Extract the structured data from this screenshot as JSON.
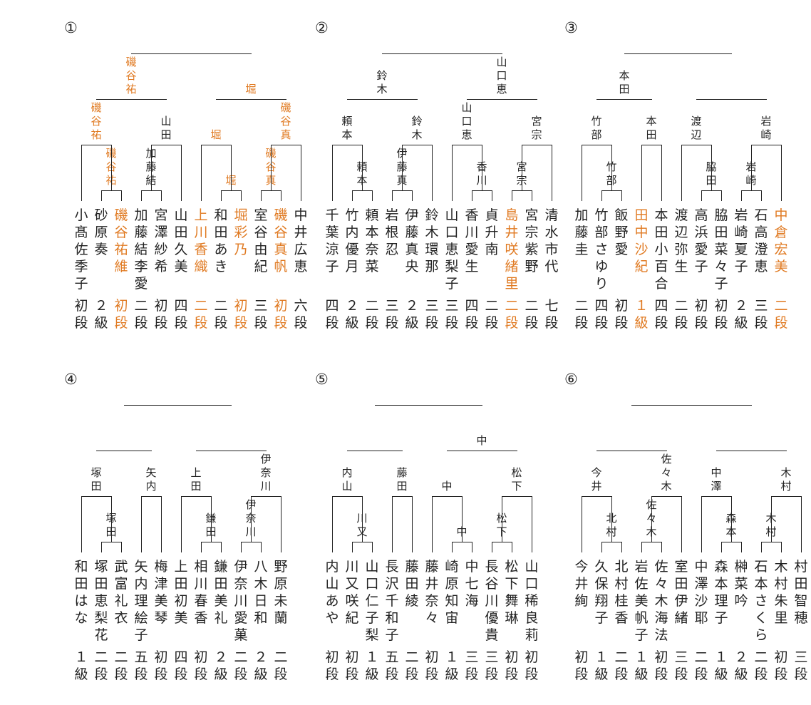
{
  "colors": {
    "winner": "#e07a22",
    "text": "#222222",
    "line": "#222222"
  },
  "brackets": [
    {
      "label": "①",
      "players": [
        {
          "name": "小髙佐季子",
          "grade": "初段",
          "w": false
        },
        {
          "name": "砂原奏",
          "grade": "２級",
          "w": false
        },
        {
          "name": "磯谷祐維",
          "grade": "初段",
          "w": true
        },
        {
          "name": "加藤結李愛",
          "grade": "二段",
          "w": false
        },
        {
          "name": "宮澤紗希",
          "grade": "初段",
          "w": false
        },
        {
          "name": "山田久美",
          "grade": "四段",
          "w": false
        },
        {
          "name": "上川香織",
          "grade": "二段",
          "w": true
        },
        {
          "name": "和田あき",
          "grade": "二段",
          "w": false
        },
        {
          "name": "堀彩乃",
          "grade": "初段",
          "w": true
        },
        {
          "name": "室谷由紀",
          "grade": "三段",
          "w": false
        },
        {
          "name": "磯谷真帆",
          "grade": "初段",
          "w": true
        },
        {
          "name": "中井広恵",
          "grade": "六段",
          "w": false
        }
      ],
      "r1": [
        {
          "name": "",
          "w": false
        },
        {
          "name": "磯谷祐",
          "w": true
        },
        {
          "name": "加藤結",
          "w": false
        },
        {
          "name": "",
          "w": false
        },
        {
          "name": "堀",
          "w": true
        },
        {
          "name": "磯谷真",
          "w": true
        }
      ],
      "qf": [
        {
          "name": "磯谷祐",
          "w": true
        },
        {
          "name": "山田",
          "w": false
        },
        {
          "name": "堀",
          "w": true
        },
        {
          "name": "磯谷真",
          "w": true
        }
      ],
      "sf": [
        {
          "name": "磯谷祐",
          "w": true
        },
        {
          "name": "堀",
          "w": true
        }
      ],
      "fin": ""
    },
    {
      "label": "②",
      "players": [
        {
          "name": "千葉涼子",
          "grade": "四段",
          "w": false
        },
        {
          "name": "竹内優月",
          "grade": "２級",
          "w": false
        },
        {
          "name": "頼本奈菜",
          "grade": "二段",
          "w": false
        },
        {
          "name": "岩根忍",
          "grade": "三段",
          "w": false
        },
        {
          "name": "伊藤真央",
          "grade": "２級",
          "w": false
        },
        {
          "name": "鈴木環那",
          "grade": "三段",
          "w": false
        },
        {
          "name": "山口恵梨子",
          "grade": "三段",
          "w": false
        },
        {
          "name": "香川愛生",
          "grade": "四段",
          "w": false
        },
        {
          "name": "貞升南",
          "grade": "二段",
          "w": false
        },
        {
          "name": "島井咲緒里",
          "grade": "二段",
          "w": true
        },
        {
          "name": "宮宗紫野",
          "grade": "二段",
          "w": false
        },
        {
          "name": "清水市代",
          "grade": "七段",
          "w": false
        }
      ],
      "r1": [
        {
          "name": "",
          "w": false
        },
        {
          "name": "頼本",
          "w": false
        },
        {
          "name": "伊藤真",
          "w": false
        },
        {
          "name": "",
          "w": false
        },
        {
          "name": "香川",
          "w": false
        },
        {
          "name": "宮宗",
          "w": false
        }
      ],
      "qf": [
        {
          "name": "頼本",
          "w": false
        },
        {
          "name": "鈴木",
          "w": false
        },
        {
          "name": "山口恵",
          "w": false
        },
        {
          "name": "宮宗",
          "w": false
        }
      ],
      "sf": [
        {
          "name": "鈴木",
          "w": false
        },
        {
          "name": "山口恵",
          "w": false
        }
      ],
      "fin": ""
    },
    {
      "label": "③",
      "players": [
        {
          "name": "加藤圭",
          "grade": "二段",
          "w": false
        },
        {
          "name": "竹部さゆり",
          "grade": "四段",
          "w": false
        },
        {
          "name": "飯野愛",
          "grade": "初段",
          "w": false
        },
        {
          "name": "田中沙紀",
          "grade": "１級",
          "w": true
        },
        {
          "name": "本田小百合",
          "grade": "四段",
          "w": false
        },
        {
          "name": "渡辺弥生",
          "grade": "二段",
          "w": false
        },
        {
          "name": "高浜愛子",
          "grade": "初段",
          "w": false
        },
        {
          "name": "脇田菜々子",
          "grade": "初段",
          "w": false
        },
        {
          "name": "岩崎夏子",
          "grade": "２級",
          "w": false
        },
        {
          "name": "石高澄恵",
          "grade": "三段",
          "w": false
        },
        {
          "name": "中倉宏美",
          "grade": "二段",
          "w": true
        }
      ],
      "r1": [
        {
          "name": "",
          "w": false
        },
        {
          "name": "竹部",
          "w": false
        },
        {
          "name": "",
          "w": false
        },
        {
          "name": "",
          "w": false
        },
        {
          "name": "脇田",
          "w": false
        },
        {
          "name": "岩崎",
          "w": false
        }
      ],
      "qf": [
        {
          "name": "竹部",
          "w": false
        },
        {
          "name": "本田",
          "w": false
        },
        {
          "name": "渡辺",
          "w": false
        },
        {
          "name": "岩崎",
          "w": false
        }
      ],
      "sf": [
        {
          "name": "本田",
          "w": false
        },
        {
          "name": "",
          "w": false
        }
      ],
      "fin": ""
    },
    {
      "label": "④",
      "players": [
        {
          "name": "和田はな",
          "grade": "１級",
          "w": false
        },
        {
          "name": "塚田恵梨花",
          "grade": "二段",
          "w": false
        },
        {
          "name": "武富礼衣",
          "grade": "二段",
          "w": false
        },
        {
          "name": "矢内理絵子",
          "grade": "五段",
          "w": false
        },
        {
          "name": "梅津美琴",
          "grade": "初段",
          "w": false
        },
        {
          "name": "上田初美",
          "grade": "四段",
          "w": false
        },
        {
          "name": "相川春香",
          "grade": "初段",
          "w": false
        },
        {
          "name": "鎌田美礼",
          "grade": "２級",
          "w": false
        },
        {
          "name": "伊奈川愛菓",
          "grade": "二段",
          "w": false
        },
        {
          "name": "八木日和",
          "grade": "２級",
          "w": false
        },
        {
          "name": "野原未蘭",
          "grade": "二段",
          "w": false
        }
      ],
      "r1": [
        {
          "name": "",
          "w": false
        },
        {
          "name": "塚田",
          "w": false
        },
        {
          "name": "",
          "w": false
        },
        {
          "name": "",
          "w": false
        },
        {
          "name": "鎌田",
          "w": false
        },
        {
          "name": "伊奈川",
          "w": false
        }
      ],
      "qf": [
        {
          "name": "塚田",
          "w": false
        },
        {
          "name": "矢内",
          "w": false
        },
        {
          "name": "上田",
          "w": false
        },
        {
          "name": "伊奈川",
          "w": false
        }
      ],
      "sf": [
        {
          "name": "",
          "w": false
        },
        {
          "name": "",
          "w": false
        }
      ],
      "fin": ""
    },
    {
      "label": "⑤",
      "players": [
        {
          "name": "内山あや",
          "grade": "初段",
          "w": false
        },
        {
          "name": "川又咲紀",
          "grade": "初段",
          "w": false
        },
        {
          "name": "山口仁子梨",
          "grade": "１級",
          "w": false
        },
        {
          "name": "長沢千和子",
          "grade": "五段",
          "w": false
        },
        {
          "name": "藤田綾",
          "grade": "二段",
          "w": false
        },
        {
          "name": "藤井奈々",
          "grade": "初段",
          "w": false
        },
        {
          "name": "崎原知宙",
          "grade": "１級",
          "w": false
        },
        {
          "name": "中七海",
          "grade": "三段",
          "w": false
        },
        {
          "name": "長谷川優貴",
          "grade": "三段",
          "w": false
        },
        {
          "name": "松下舞琳",
          "grade": "初段",
          "w": false
        },
        {
          "name": "山口稀良莉",
          "grade": "初段",
          "w": false
        }
      ],
      "r1": [
        {
          "name": "",
          "w": false
        },
        {
          "name": "川又",
          "w": false
        },
        {
          "name": "",
          "w": false
        },
        {
          "name": "",
          "w": false
        },
        {
          "name": "中",
          "w": false
        },
        {
          "name": "松下",
          "w": false
        }
      ],
      "qf": [
        {
          "name": "内山",
          "w": false
        },
        {
          "name": "藤田",
          "w": false
        },
        {
          "name": "中",
          "w": false
        },
        {
          "name": "松下",
          "w": false
        }
      ],
      "sf": [
        {
          "name": "",
          "w": false
        },
        {
          "name": "中",
          "w": false
        }
      ],
      "fin": ""
    },
    {
      "label": "⑥",
      "players": [
        {
          "name": "今井絢",
          "grade": "初段",
          "w": false
        },
        {
          "name": "久保翔子",
          "grade": "１級",
          "w": false
        },
        {
          "name": "北村桂香",
          "grade": "二段",
          "w": false
        },
        {
          "name": "岩佐美帆子",
          "grade": "１級",
          "w": false
        },
        {
          "name": "佐々木海法",
          "grade": "初段",
          "w": false
        },
        {
          "name": "室田伊緒",
          "grade": "三段",
          "w": false
        },
        {
          "name": "中澤沙耶",
          "grade": "二段",
          "w": false
        },
        {
          "name": "森本理子",
          "grade": "１級",
          "w": false
        },
        {
          "name": "榊菜吟",
          "grade": "２級",
          "w": false
        },
        {
          "name": "石本さくら",
          "grade": "二段",
          "w": false
        },
        {
          "name": "木村朱里",
          "grade": "初段",
          "w": false
        },
        {
          "name": "村田智穂",
          "grade": "三段",
          "w": false
        }
      ],
      "r1": [
        {
          "name": "",
          "w": false
        },
        {
          "name": "北村",
          "w": false
        },
        {
          "name": "佐々木",
          "w": false
        },
        {
          "name": "",
          "w": false
        },
        {
          "name": "森本",
          "w": false
        },
        {
          "name": "木村",
          "w": false
        }
      ],
      "qf": [
        {
          "name": "今井",
          "w": false
        },
        {
          "name": "佐々木",
          "w": false
        },
        {
          "name": "中澤",
          "w": false
        },
        {
          "name": "木村",
          "w": false
        }
      ],
      "sf": [
        {
          "name": "",
          "w": false
        },
        {
          "name": "",
          "w": false
        }
      ],
      "fin": ""
    }
  ]
}
